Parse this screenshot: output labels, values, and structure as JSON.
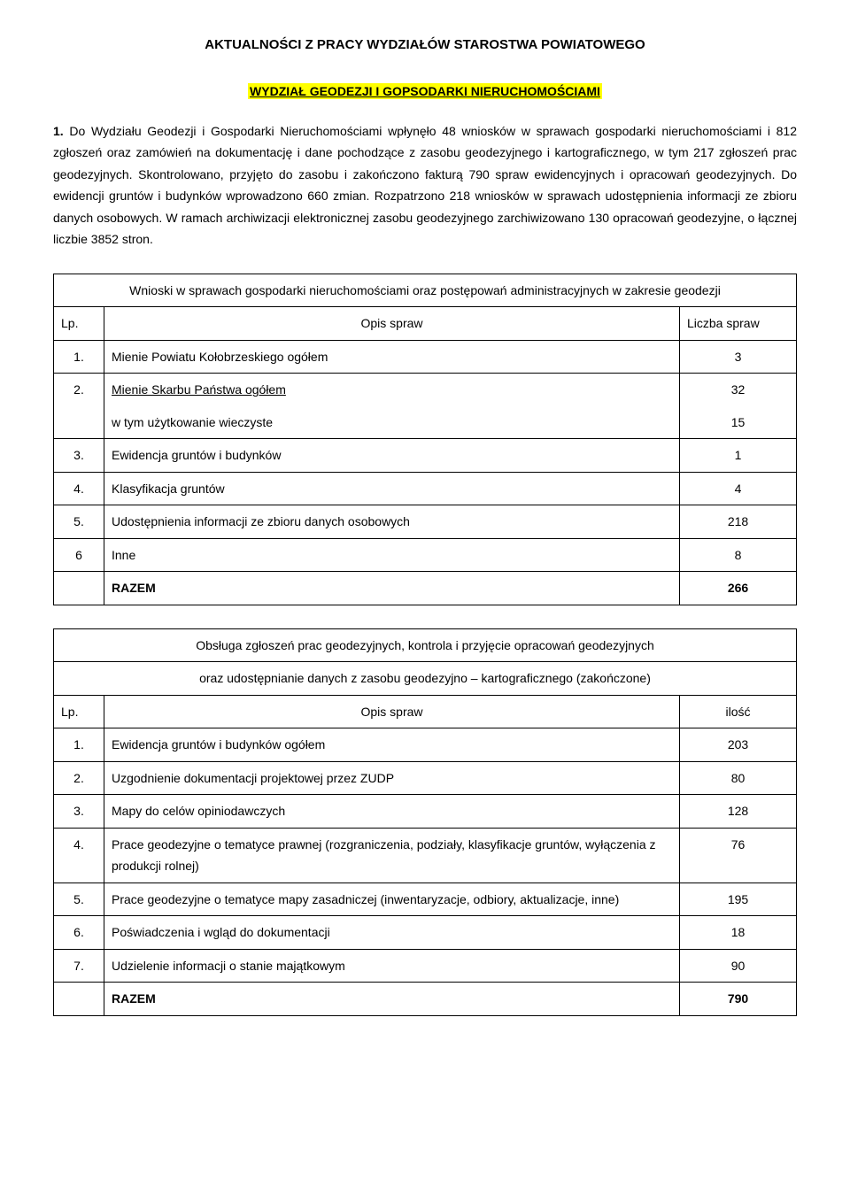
{
  "colors": {
    "highlight_bg": "#ffff00",
    "text": "#000000",
    "background": "#ffffff",
    "border": "#000000"
  },
  "typography": {
    "body_family": "Verdana",
    "body_size_pt": 11,
    "title_size_pt": 12,
    "line_height": 1.75
  },
  "title": "AKTUALNOŚCI Z PRACY WYDZIAŁÓW STAROSTWA POWIATOWEGO",
  "subtitle": "WYDZIAŁ GEODEZJI I GOPSODARKI NIERUCHOMOŚCIAMI",
  "paragraph": {
    "lead": "1.",
    "text": "Do Wydziału Geodezji i Gospodarki Nieruchomościami wpłynęło 48 wniosków w sprawach gospodarki nieruchomościami i 812 zgłoszeń oraz zamówień na dokumentację i dane pochodzące z zasobu geodezyjnego i kartograficznego, w tym 217 zgłoszeń prac geodezyjnych. Skontrolowano, przyjęto do zasobu i zakończono fakturą 790 spraw ewidencyjnych i opracowań geodezyjnych. Do ewidencji gruntów i budynków wprowadzono 660 zmian. Rozpatrzono 218 wniosków w sprawach udostępnienia informacji ze zbioru danych osobowych. W ramach archiwizacji elektronicznej zasobu geodezyjnego zarchiwizowano 130 opracowań geodezyjne, o łącznej liczbie 3852 stron."
  },
  "table1": {
    "caption": "Wnioski w sprawach gospodarki nieruchomościami oraz postępowań administracyjnych w zakresie geodezji",
    "headers": {
      "lp": "Lp.",
      "opis": "Opis spraw",
      "count": "Liczba spraw"
    },
    "rows": [
      {
        "lp": "1.",
        "opis": "Mienie  Powiatu Kołobrzeskiego ogółem",
        "count": "3",
        "underline": false
      },
      {
        "lp": "2.",
        "opis": "Mienie  Skarbu Państwa ogółem",
        "count": "32",
        "underline": true
      },
      {
        "lp": "",
        "opis": "w tym użytkowanie wieczyste",
        "count": "15",
        "underline": false,
        "sub": true
      },
      {
        "lp": "3.",
        "opis": "Ewidencja gruntów i budynków",
        "count": "1",
        "underline": false
      },
      {
        "lp": "4.",
        "opis": "Klasyfikacja gruntów",
        "count": "4",
        "underline": false
      },
      {
        "lp": "5.",
        "opis": "Udostępnienia informacji ze zbioru danych osobowych",
        "count": "218",
        "underline": false
      },
      {
        "lp": "6",
        "opis": "Inne",
        "count": "8",
        "underline": false
      }
    ],
    "total": {
      "label": "RAZEM",
      "count": "266"
    }
  },
  "table2": {
    "caption_line1": "Obsługa zgłoszeń prac geodezyjnych, kontrola i przyjęcie opracowań geodezyjnych",
    "caption_line2": "oraz udostępnianie danych z zasobu geodezyjno – kartograficznego (zakończone)",
    "headers": {
      "lp": "Lp.",
      "opis": "Opis spraw",
      "count": "ilość"
    },
    "rows": [
      {
        "lp": "1.",
        "opis": "Ewidencja gruntów i budynków ogółem",
        "count": "203"
      },
      {
        "lp": "2.",
        "opis": "Uzgodnienie dokumentacji projektowej przez ZUDP",
        "count": "80"
      },
      {
        "lp": "3.",
        "opis": "Mapy do celów opiniodawczych",
        "count": "128"
      },
      {
        "lp": "4.",
        "opis": "Prace geodezyjne o tematyce prawnej (rozgraniczenia, podziały, klasyfikacje gruntów, wyłączenia z produkcji rolnej)",
        "count": "76"
      },
      {
        "lp": "5.",
        "opis": "Prace geodezyjne o tematyce mapy zasadniczej (inwentaryzacje, odbiory, aktualizacje, inne)",
        "count": "195"
      },
      {
        "lp": "6.",
        "opis": "Poświadczenia i wgląd do dokumentacji",
        "count": "18"
      },
      {
        "lp": "7.",
        "opis": "Udzielenie informacji o stanie majątkowym",
        "count": "90"
      }
    ],
    "total": {
      "label": "RAZEM",
      "count": "790"
    }
  }
}
